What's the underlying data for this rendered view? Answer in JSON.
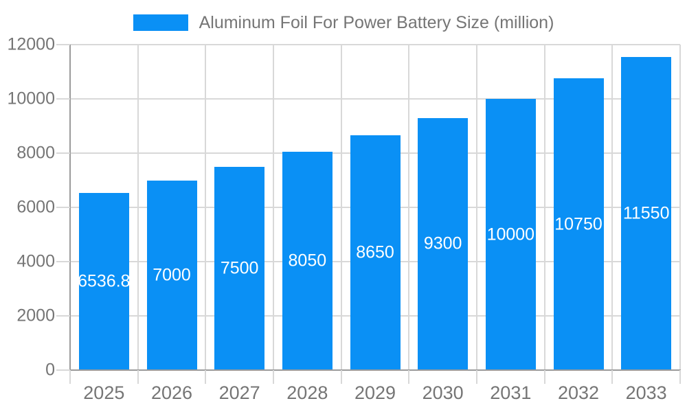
{
  "legend": {
    "label": "Aluminum Foil For Power Battery Size (million)"
  },
  "chart_data": {
    "type": "bar",
    "title": "Aluminum Foil For Power Battery Size (million)",
    "categories": [
      "2025",
      "2026",
      "2027",
      "2028",
      "2029",
      "2030",
      "2031",
      "2032",
      "2033"
    ],
    "series": [
      {
        "name": "Aluminum Foil For Power Battery Size (million)",
        "values": [
          6536.8,
          7000,
          7500,
          8050,
          8650,
          9300,
          10000,
          10750,
          11550
        ]
      }
    ],
    "value_labels": [
      "6536.8",
      "7000",
      "7500",
      "8050",
      "8650",
      "9300",
      "10000",
      "10750",
      "11550"
    ],
    "xlabel": "",
    "ylabel": "",
    "ylim": [
      0,
      12000
    ],
    "yticks": [
      0,
      2000,
      4000,
      6000,
      8000,
      10000,
      12000
    ],
    "grid": true,
    "legend_position": "top-center",
    "value_label_position": "inside-center"
  },
  "colors": {
    "bar": "#0A90F5",
    "axis_text": "#757575",
    "value_text": "#FFFFFF",
    "gridline": "#D8D8D8",
    "axis_line": "#9A9A9A",
    "background": "#FFFFFF"
  }
}
